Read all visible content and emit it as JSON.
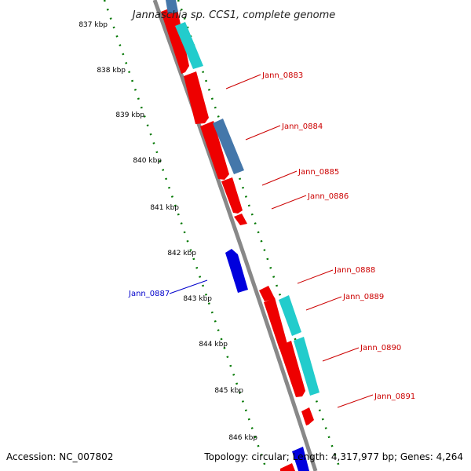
{
  "title": "Jannaschia sp. CCS1, complete genome",
  "footer": {
    "accession": "Accession: NC_007802",
    "topology": "Topology: circular; Length: 4,317,977 bp; Genes: 4,264"
  },
  "kbp_labels": [
    "837 kbp",
    "838 kbp",
    "839 kbp",
    "840 kbp",
    "841 kbp",
    "842 kbp",
    "843 kbp",
    "844 kbp",
    "845 kbp",
    "846 kbp"
  ],
  "gene_labels": [
    {
      "name": "Jann_0883",
      "strand": "plus"
    },
    {
      "name": "Jann_0884",
      "strand": "plus"
    },
    {
      "name": "Jann_0885",
      "strand": "plus"
    },
    {
      "name": "Jann_0886",
      "strand": "plus"
    },
    {
      "name": "Jann_0887",
      "strand": "minus"
    },
    {
      "name": "Jann_0888",
      "strand": "plus"
    },
    {
      "name": "Jann_0889",
      "strand": "plus"
    },
    {
      "name": "Jann_0890",
      "strand": "plus"
    },
    {
      "name": "Jann_0891",
      "strand": "plus"
    }
  ],
  "colors": {
    "plus_label": "#cc0000",
    "minus_label": "#0000cc",
    "cds_red": "#ee0000",
    "cds_cyan": "#22cccc",
    "cds_steel": "#4477aa",
    "cds_blue": "#0000dd",
    "tick_green": "#007700",
    "backbone": "#888888"
  }
}
